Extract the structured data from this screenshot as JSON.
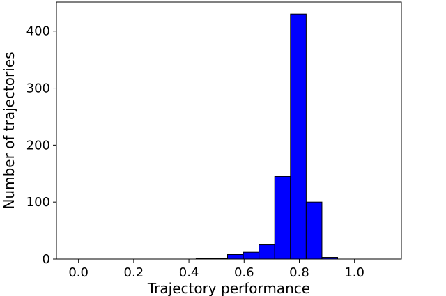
{
  "chart_data": {
    "type": "bar",
    "title": "",
    "xlabel": "Trajectory performance",
    "ylabel": "Number of trajectories",
    "xlim": [
      -0.08,
      1.17
    ],
    "ylim": [
      0,
      451
    ],
    "bin_edges": [
      -0.03,
      0.027,
      0.084,
      0.141,
      0.198,
      0.255,
      0.312,
      0.369,
      0.426,
      0.483,
      0.54,
      0.597,
      0.654,
      0.711,
      0.768,
      0.825,
      0.882,
      0.939,
      0.996,
      1.053,
      1.11
    ],
    "values": [
      0,
      0,
      0,
      0,
      0,
      0,
      0,
      0,
      1,
      1,
      8,
      12,
      25,
      145,
      430,
      100,
      3,
      0,
      0,
      0
    ],
    "x_ticks": [
      0.0,
      0.2,
      0.4,
      0.6,
      0.8,
      1.0
    ],
    "x_tick_labels": [
      "0.0",
      "0.2",
      "0.4",
      "0.6",
      "0.8",
      "1.0"
    ],
    "y_ticks": [
      0,
      100,
      200,
      300,
      400
    ],
    "y_tick_labels": [
      "0",
      "100",
      "200",
      "300",
      "400"
    ],
    "bar_color": "#0000ff",
    "edge_color": "#000000",
    "grid": false,
    "legend": "none"
  }
}
